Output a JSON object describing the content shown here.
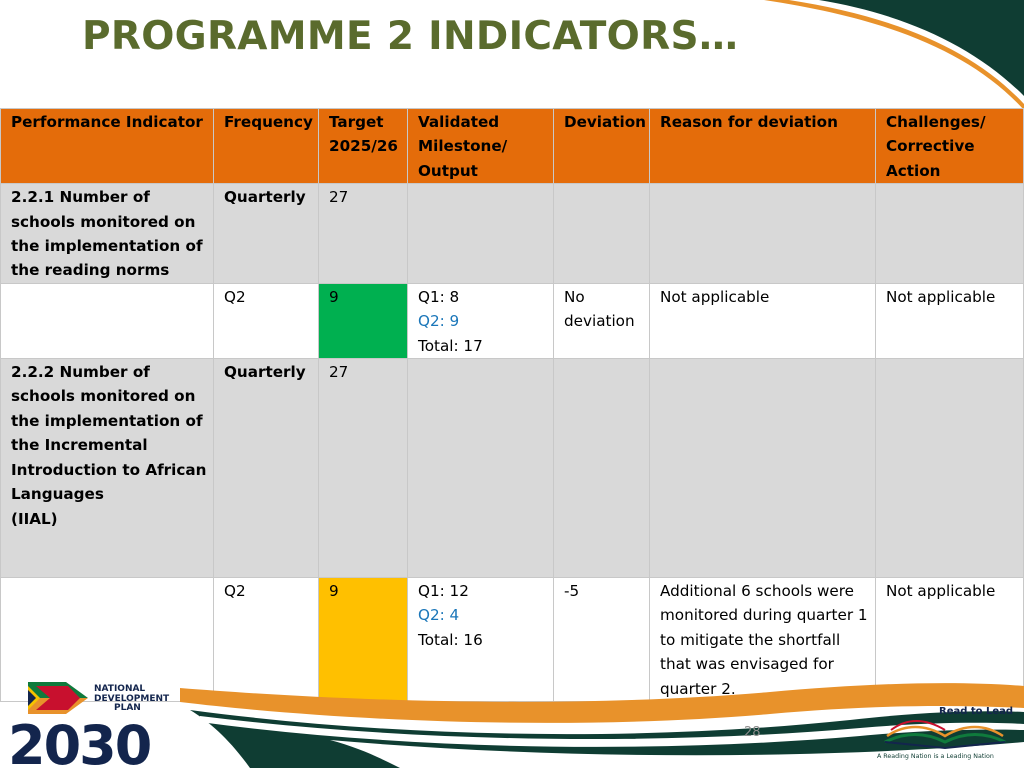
{
  "slide": {
    "title": "PROGRAMME 2 INDICATORS…",
    "page_number": "28"
  },
  "table": {
    "headers": {
      "indicator": "Performance Indicator",
      "frequency": "Frequency",
      "target": "Target 2025/26",
      "validated": "Validated Milestone/ Output",
      "deviation": "Deviation",
      "reason": "Reason for deviation",
      "challenges": "Challenges/ Corrective Action"
    },
    "rows": [
      {
        "indicator": "2.2.1 Number of schools monitored on the implementation of the reading norms",
        "frequency": "Quarterly",
        "target": "27",
        "quarter": {
          "frequency": "Q2",
          "target": "9",
          "target_status_color": "#00b050",
          "validated_q1": "Q1: 8",
          "validated_q2": "Q2: 9",
          "validated_total": "Total: 17",
          "deviation": "No deviation",
          "reason": "Not applicable",
          "challenges": "Not applicable"
        }
      },
      {
        "indicator_lines": [
          "2.2.2 Number of schools monitored on the implementation of the Incremental Introduction to African Languages",
          "(IIAL)"
        ],
        "frequency": "Quarterly",
        "target": "27",
        "quarter": {
          "frequency": "Q2",
          "target": "9",
          "target_status_color": "#ffc000",
          "validated_q1": "Q1: 12",
          "validated_q2": "Q2: 4",
          "validated_total": "Total: 16",
          "deviation": "-5",
          "reason": "Additional 6 schools were monitored during quarter 1 to mitigate the shortfall that was envisaged for quarter 2.",
          "challenges": "Not applicable"
        }
      }
    ]
  },
  "logos": {
    "ndp": {
      "line1": "NATIONAL",
      "line2": "DEVELOPMENT",
      "line3": "PLAN",
      "year": "2030"
    },
    "read_to_lead": {
      "title": "Read to Lead",
      "tagline": "A Reading Nation is a Leading Nation"
    }
  },
  "colors": {
    "title": "#5a6b2d",
    "header_bg": "#e46c0a",
    "indicator_row_bg": "#d9d9d9",
    "on_target": "#00b050",
    "below_target": "#ffc000",
    "q2_text": "#1a76b9",
    "swoosh_dark": "#0f3d33",
    "swoosh_orange": "#e8922b"
  }
}
